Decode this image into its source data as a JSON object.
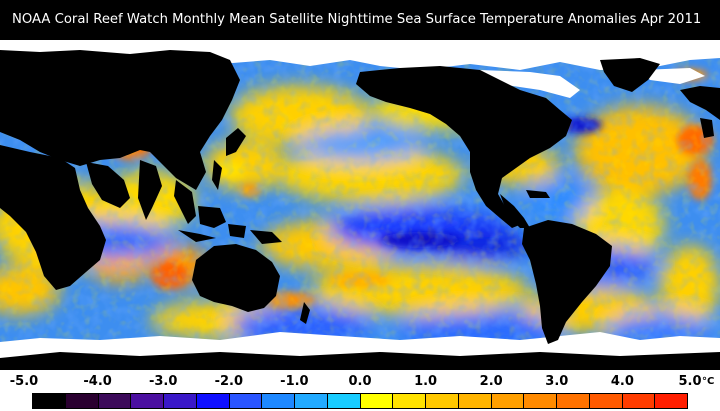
{
  "title": "NOAA Coral Reef Watch Monthly Mean Satellite Nighttime Sea Surface Temperature Anomalies   Apr 2011",
  "legend": {
    "tick_labels": [
      "-5.0",
      "-4.0",
      "-3.0",
      "-2.0",
      "-1.0",
      "0.0",
      "1.0",
      "2.0",
      "3.0",
      "4.0",
      "5.0"
    ],
    "unit": "°C",
    "colors": [
      "#000000",
      "#2a0030",
      "#3c0a5a",
      "#4b0fa0",
      "#3a18c8",
      "#1010ff",
      "#2a55ff",
      "#1e88ff",
      "#22aaff",
      "#19ccff",
      "#ffff00",
      "#ffe200",
      "#ffc800",
      "#ffb400",
      "#ff9f00",
      "#ff8a00",
      "#ff7200",
      "#ff5a00",
      "#ff3c00",
      "#ff1e00"
    ]
  },
  "map_colors": {
    "ocean_base": "#3d8ef0",
    "land": "#000000",
    "ice": "#ffffff",
    "warm": "#ffd400",
    "strong_warm": "#ff7a00",
    "cool": "#1f5bff",
    "strong_cool": "#1010c8"
  }
}
